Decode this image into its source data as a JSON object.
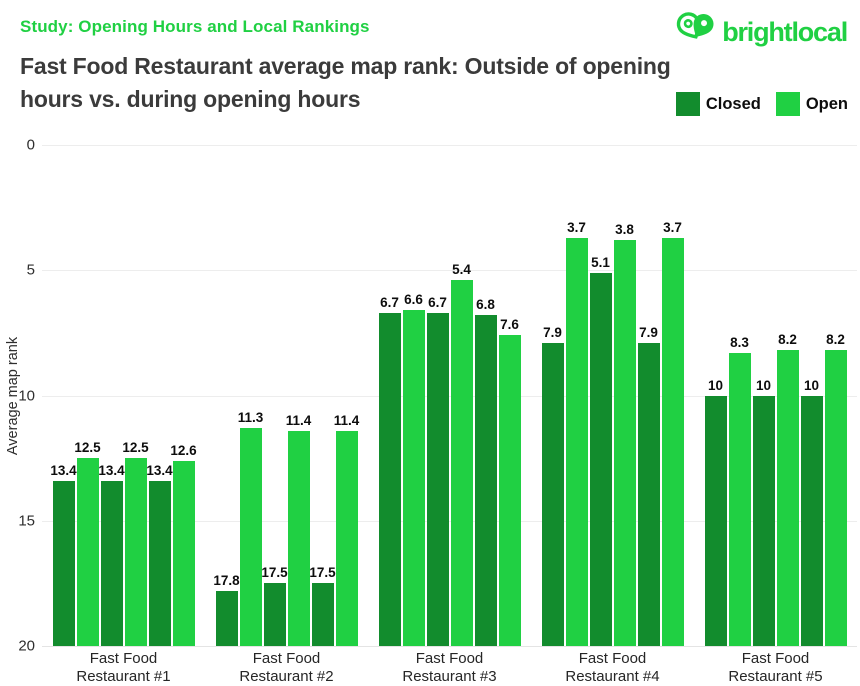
{
  "header": {
    "kicker": "Study: Opening Hours and Local Rankings",
    "title_line1": "Fast Food Restaurant average map rank: Outside of opening",
    "title_line2": "hours vs. during opening hours",
    "brand_name": "brightlocal"
  },
  "colors": {
    "brand_green": "#20d043",
    "closed_bar": "#128c2d",
    "open_bar": "#20d043",
    "title_text": "#3b3b3b",
    "gridline": "#ededed",
    "axis_text": "#2e2e2e",
    "value_label_text": "#0d0d0d"
  },
  "chart_data": {
    "type": "bar",
    "title": "Fast Food Restaurant average map rank: Outside of opening hours vs. during opening hours",
    "ylabel": "Average map rank",
    "xlabel": "",
    "ylim": [
      0,
      20
    ],
    "yticks": [
      0,
      5,
      10,
      15,
      20
    ],
    "y_axis_inverted": true,
    "grid": true,
    "legend_position": "top-right",
    "bar_arrangement": "three alternating Closed/Open pairs per category",
    "categories": [
      "Fast Food Restaurant #1",
      "Fast Food Restaurant #2",
      "Fast Food Restaurant #3",
      "Fast Food Restaurant #4",
      "Fast Food Restaurant #5"
    ],
    "series": [
      {
        "name": "Closed",
        "color": "#128c2d",
        "values": [
          [
            13.4,
            13.4,
            13.4
          ],
          [
            17.8,
            17.5,
            17.5
          ],
          [
            6.7,
            6.7,
            6.8
          ],
          [
            7.9,
            5.1,
            7.9
          ],
          [
            10,
            10,
            10
          ]
        ]
      },
      {
        "name": "Open",
        "color": "#20d043",
        "values": [
          [
            12.5,
            12.5,
            12.6
          ],
          [
            11.3,
            11.4,
            11.4
          ],
          [
            6.6,
            5.4,
            7.6
          ],
          [
            3.7,
            3.8,
            3.7
          ],
          [
            8.3,
            8.2,
            8.2
          ]
        ]
      }
    ]
  }
}
